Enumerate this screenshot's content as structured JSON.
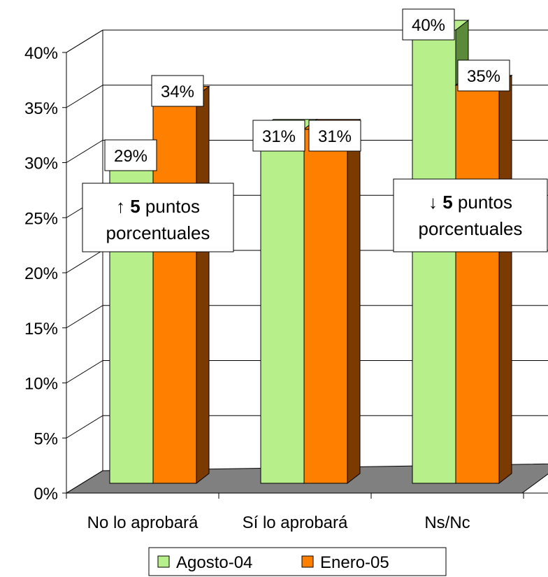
{
  "chart_data": {
    "type": "bar",
    "title": "",
    "xlabel": "",
    "ylabel": "",
    "categories": [
      "No lo aprobará",
      "Sí lo aprobará",
      "Ns/Nc"
    ],
    "series": [
      {
        "name": "Agosto-04",
        "values": [
          29,
          31,
          40
        ],
        "color": "#b7f08a",
        "side_color": "#5a8a3a"
      },
      {
        "name": "Enero-05",
        "values": [
          34,
          31,
          35
        ],
        "color": "#ff8000",
        "side_color": "#7a3a00"
      }
    ],
    "data_labels": {
      "series": [
        [
          "29%",
          "31%",
          "40%"
        ],
        [
          "34%",
          "31%",
          "35%"
        ]
      ]
    },
    "y_ticks": [
      "0%",
      "5%",
      "10%",
      "15%",
      "20%",
      "25%",
      "30%",
      "35%",
      "40%"
    ],
    "ylim": [
      0,
      40
    ],
    "grid": true,
    "legend": {
      "position": "bottom",
      "entries": [
        "Agosto-04",
        "Enero-05"
      ]
    },
    "annotations": [
      {
        "category": "No lo aprobará",
        "arrow": "↑",
        "number": "5",
        "line1": "puntos",
        "line2": "porcentuales"
      },
      {
        "category": "Ns/Nc",
        "arrow": "↓",
        "number": "5",
        "line1": "puntos",
        "line2": "porcentuales"
      }
    ],
    "colors": {
      "floor": "#808080",
      "grid": "#000000"
    }
  }
}
